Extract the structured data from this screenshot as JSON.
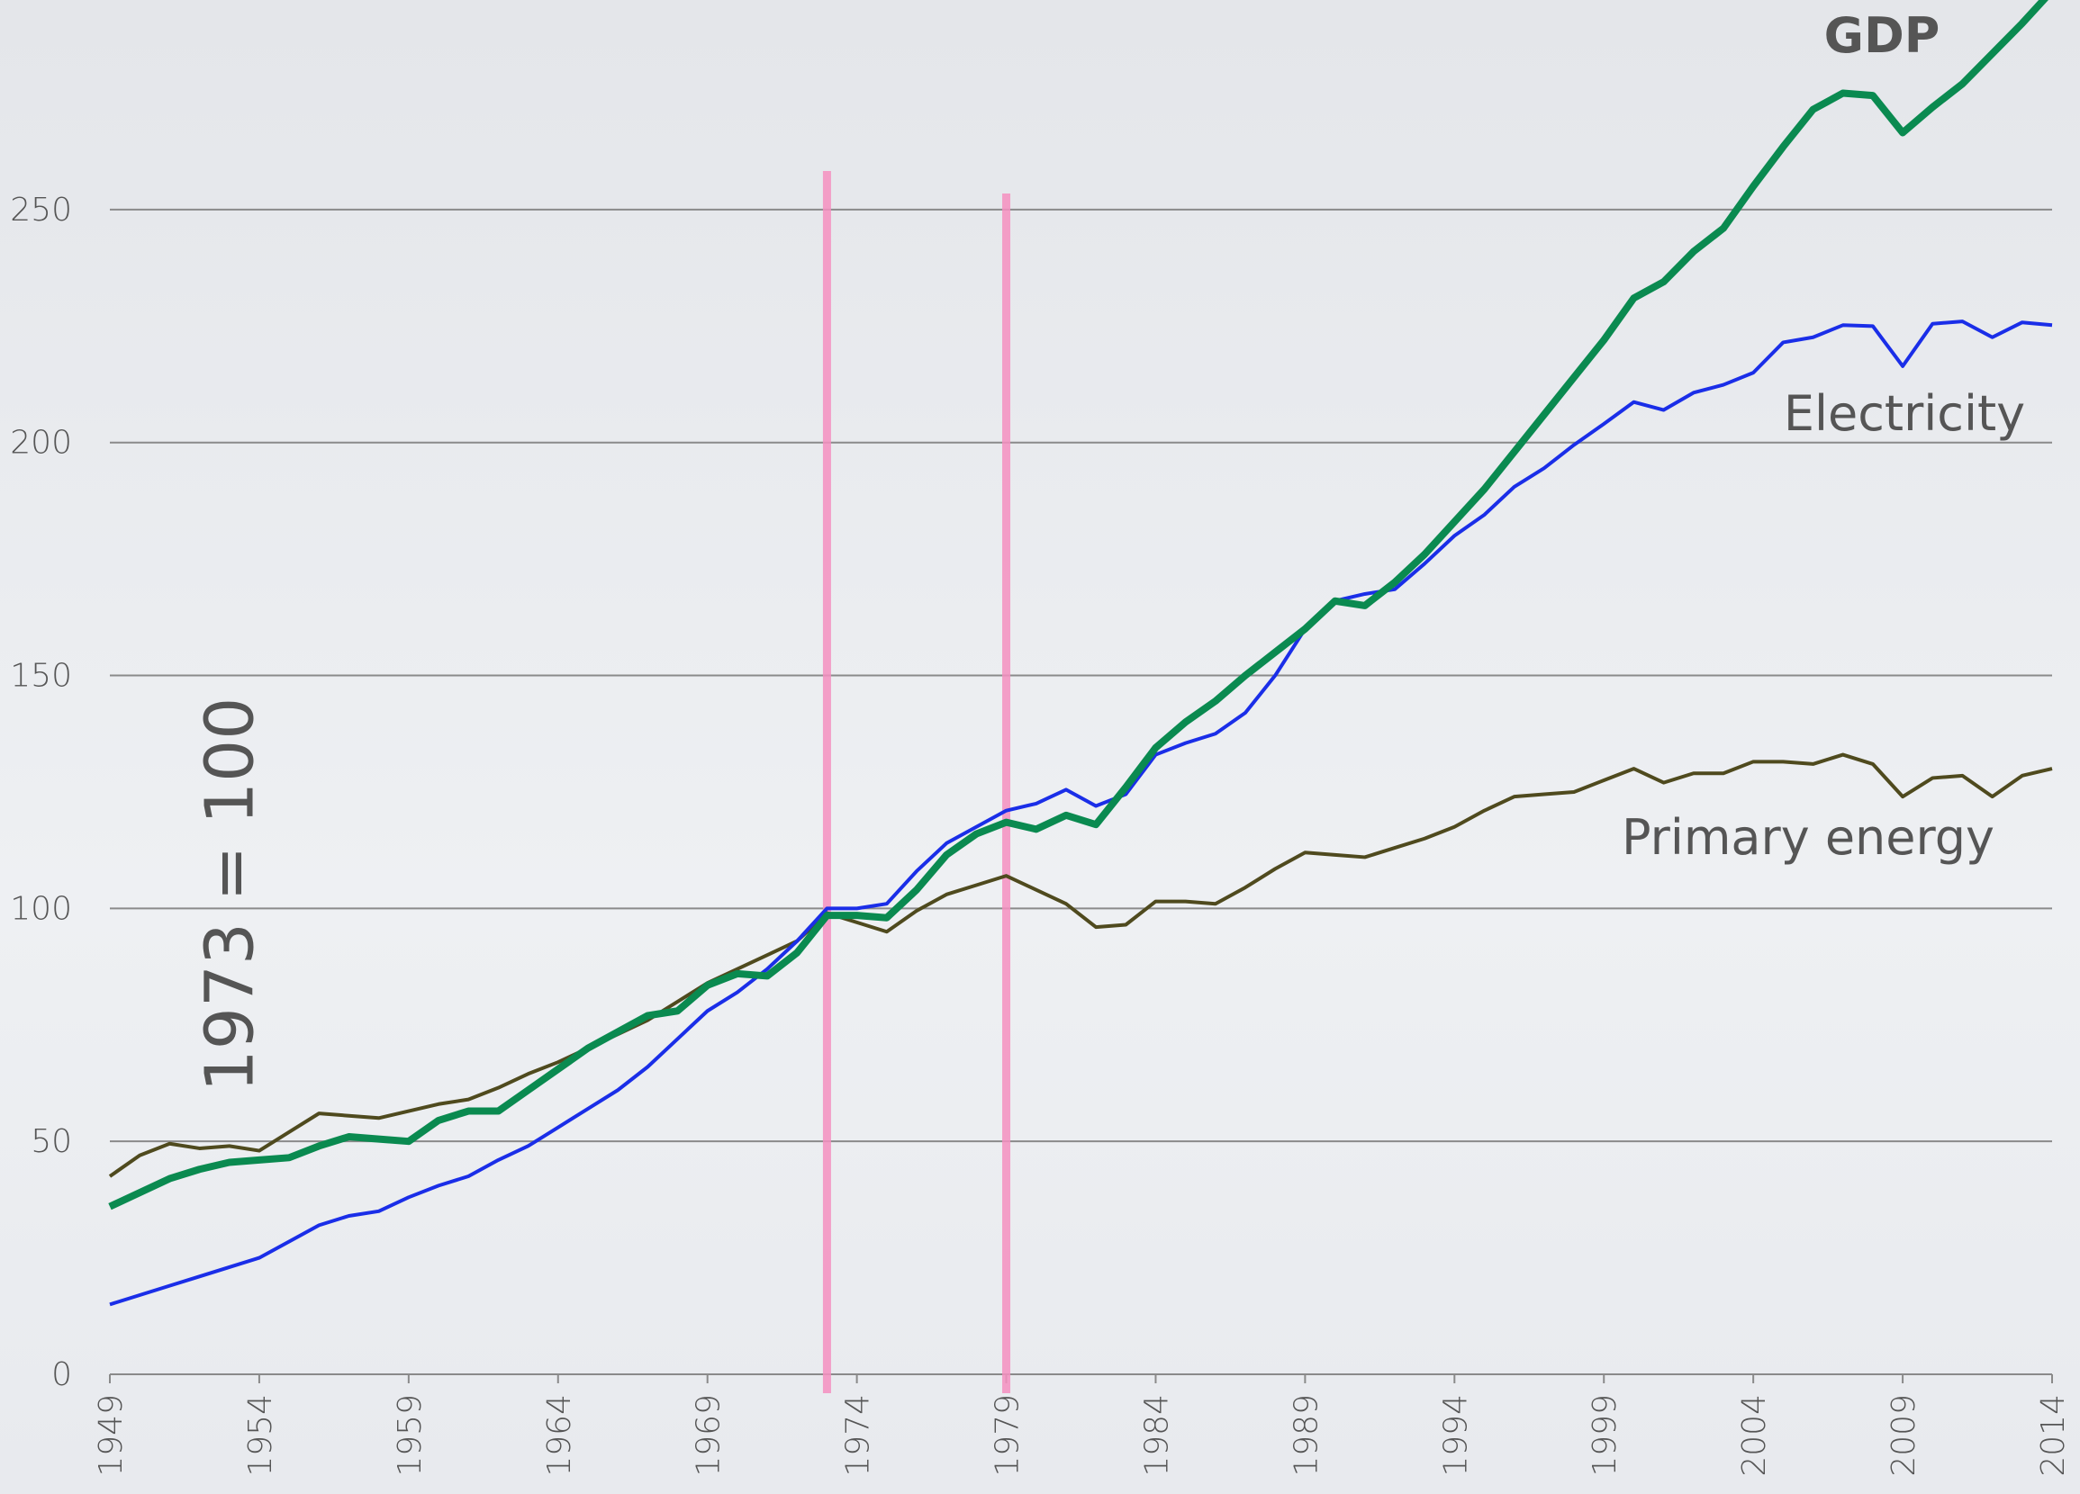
{
  "chart_data": {
    "type": "line",
    "annotation": "1973 = 100",
    "x": [
      1949,
      1950,
      1951,
      1952,
      1953,
      1954,
      1955,
      1956,
      1957,
      1958,
      1959,
      1960,
      1961,
      1962,
      1963,
      1964,
      1965,
      1966,
      1967,
      1968,
      1969,
      1970,
      1971,
      1972,
      1973,
      1974,
      1975,
      1976,
      1977,
      1978,
      1979,
      1980,
      1981,
      1982,
      1983,
      1984,
      1985,
      1986,
      1987,
      1988,
      1989,
      1990,
      1991,
      1992,
      1993,
      1994,
      1995,
      1996,
      1997,
      1998,
      1999,
      2000,
      2001,
      2002,
      2003,
      2004,
      2005,
      2006,
      2007,
      2008,
      2009,
      2010,
      2011,
      2012,
      2013,
      2014
    ],
    "series": [
      {
        "name": "GDP",
        "color": "#0a8a50",
        "values": [
          36,
          39,
          42,
          44,
          45.5,
          46,
          46.5,
          49,
          51,
          50.5,
          50,
          54.5,
          56.5,
          56.5,
          61,
          65.5,
          70,
          73.5,
          77,
          78,
          83.5,
          86,
          85.5,
          90.5,
          98.5,
          98.5,
          98,
          104,
          111.5,
          116,
          118.5,
          117,
          120,
          118,
          126,
          134.5,
          140,
          144.5,
          150,
          155,
          160,
          166,
          165,
          170,
          176,
          183,
          190,
          198,
          206,
          214,
          222,
          231,
          234.5,
          241,
          246,
          255,
          263.5,
          271.5,
          275,
          274.5,
          266.5,
          272,
          277,
          283.5,
          290,
          297
        ]
      },
      {
        "name": "Electricity",
        "color": "#1a2ee8",
        "values": [
          15,
          17,
          19,
          21,
          23,
          25,
          28.5,
          32,
          34,
          35,
          38,
          40.5,
          42.5,
          46,
          49,
          53,
          57,
          61,
          66,
          72,
          78,
          82,
          87,
          93,
          100,
          100,
          101,
          108,
          114,
          117.5,
          121,
          122.5,
          125.5,
          122,
          124.5,
          133,
          135.5,
          137.5,
          142,
          150,
          160,
          166,
          167.5,
          168.5,
          174,
          180,
          184.5,
          190.5,
          194.5,
          199.5,
          204,
          208.7,
          207,
          210.7,
          212.4,
          215,
          221.5,
          222.6,
          225.2,
          225,
          216.4,
          225.5,
          226,
          222.6,
          225.8,
          225.2
        ]
      },
      {
        "name": "Primary energy",
        "color": "#4f4a1e",
        "values": [
          42.5,
          47,
          49.5,
          48.5,
          49,
          48,
          52,
          56,
          55.5,
          55,
          56.5,
          58,
          59,
          61.5,
          64.5,
          67,
          70,
          73,
          76,
          80,
          84,
          87,
          90,
          93,
          99,
          97,
          95,
          99.5,
          103,
          105,
          107,
          104,
          101,
          96,
          96.5,
          101.5,
          101.5,
          101,
          104.5,
          108.5,
          112,
          111.5,
          111,
          113,
          115,
          117.5,
          121,
          124,
          124.5,
          125,
          127.5,
          130,
          127,
          129,
          129,
          131.5,
          131.5,
          131,
          133,
          131,
          124,
          128,
          128.5,
          124,
          128.5,
          130
        ]
      }
    ],
    "xlim": [
      1949,
      2014
    ],
    "xticks": [
      1949,
      1954,
      1959,
      1964,
      1969,
      1974,
      1979,
      1984,
      1989,
      1994,
      1999,
      2004,
      2009,
      2014
    ],
    "ylim": [
      0,
      295
    ],
    "yticks": [
      0,
      50,
      100,
      150,
      200,
      250
    ],
    "grid": true,
    "reference_lines": {
      "x": [
        1973,
        1979
      ],
      "color": "#f48fc0"
    }
  }
}
